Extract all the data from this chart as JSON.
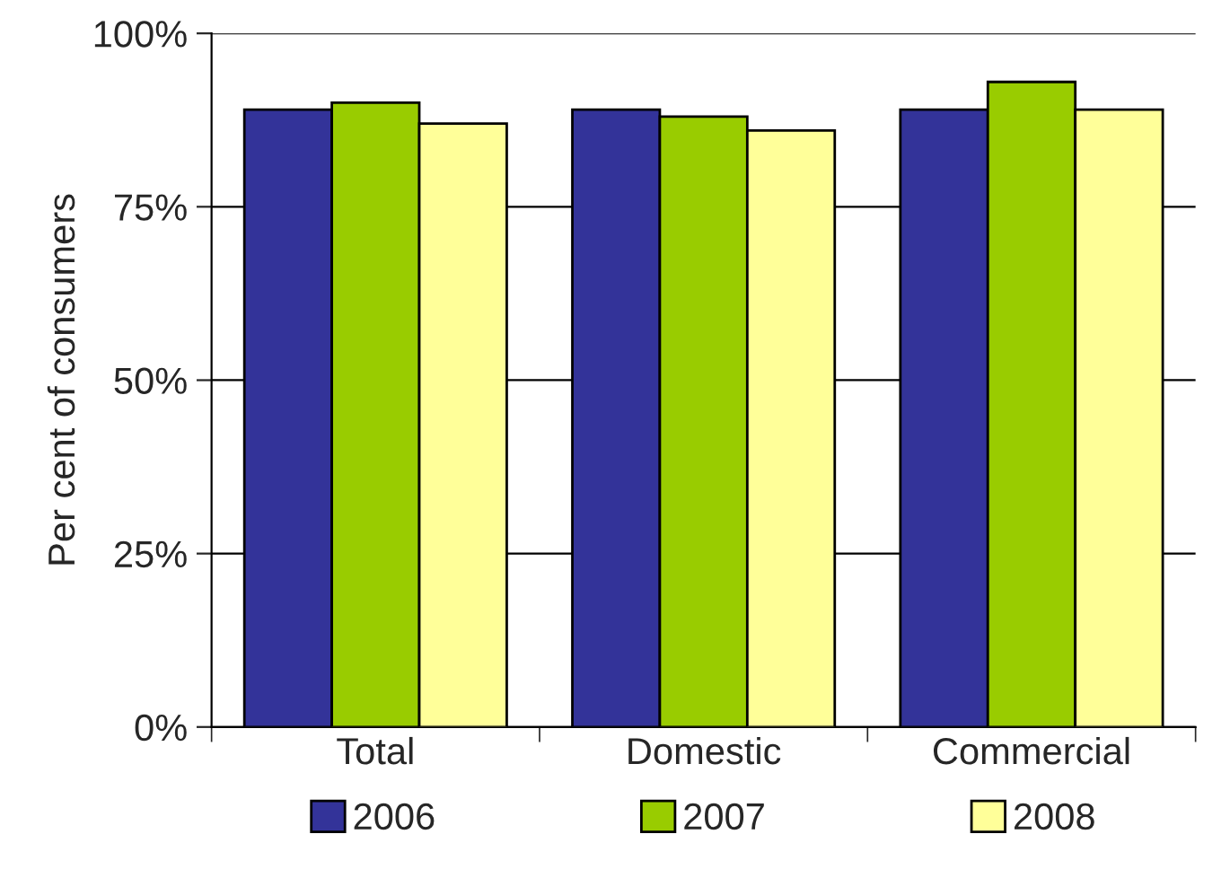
{
  "chart_data": {
    "type": "bar",
    "ylabel": "Per cent of consumers",
    "categories": [
      "Total",
      "Domestic",
      "Commercial"
    ],
    "series": [
      {
        "name": "2006",
        "color": "#333399",
        "values": [
          89,
          89,
          89
        ]
      },
      {
        "name": "2007",
        "color": "#99cc00",
        "values": [
          90,
          88,
          93
        ]
      },
      {
        "name": "2008",
        "color": "#ffff99",
        "values": [
          87,
          86,
          89
        ]
      }
    ],
    "ylim": [
      0,
      100
    ],
    "yticks": [
      {
        "value": 0,
        "label": "0%"
      },
      {
        "value": 25,
        "label": "25%"
      },
      {
        "value": 50,
        "label": "50%"
      },
      {
        "value": 75,
        "label": "75%"
      },
      {
        "value": 100,
        "label": "100%"
      }
    ],
    "grid": "y",
    "legend": "bottom"
  }
}
